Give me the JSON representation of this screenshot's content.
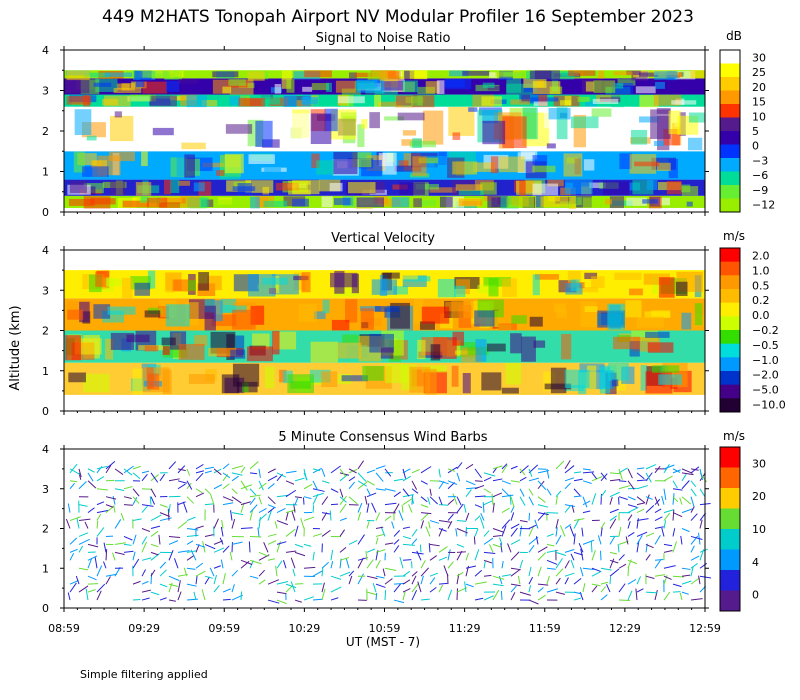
{
  "title": "449 M2HATS Tonopah Airport NV Modular Profiler 16 September 2023",
  "footnote": "Simple filtering applied",
  "xlabel": "UT  (MST - 7)",
  "ylabel": "Altitude (km)",
  "chart_data": [
    {
      "type": "heatmap",
      "title": "Signal to Noise Ratio",
      "units": "dB",
      "xlabel": "UT  (MST - 7)",
      "ylabel": "Altitude (km)",
      "x_ticks": [
        "08:59",
        "09:29",
        "09:59",
        "10:29",
        "10:59",
        "11:29",
        "11:59",
        "12:29",
        "12:59"
      ],
      "xlim": [
        "08:59",
        "12:59"
      ],
      "ylim": [
        0,
        4
      ],
      "y_ticks": [
        0,
        1,
        2,
        3,
        4
      ],
      "colorbar": {
        "labels": [
          "30",
          "25",
          "20",
          "15",
          "10",
          "5",
          "0",
          "−3",
          "−6",
          "−9",
          "−12"
        ],
        "colors": [
          "#ffffff",
          "#ffff00",
          "#ffcc00",
          "#ff9900",
          "#ff3300",
          "#551a8b",
          "#3300aa",
          "#0033ff",
          "#00aaff",
          "#00dd99",
          "#66ee33",
          "#99ee00"
        ]
      },
      "bands": [
        {
          "from": 0.1,
          "to": 0.4,
          "level": "-12",
          "color": "#99ee00"
        },
        {
          "from": 0.4,
          "to": 0.8,
          "level": "-3",
          "color": "#2222cc"
        },
        {
          "from": 0.8,
          "to": 1.5,
          "level": "-6",
          "color": "#00aaff"
        },
        {
          "from": 1.5,
          "to": 2.6,
          "level": "30",
          "color": "#ffffff"
        },
        {
          "from": 2.6,
          "to": 2.9,
          "level": "-9",
          "color": "#00dd99"
        },
        {
          "from": 2.9,
          "to": 3.3,
          "level": "0",
          "color": "#3300aa"
        },
        {
          "from": 3.3,
          "to": 3.5,
          "level": "-12",
          "color": "#99ee00"
        }
      ]
    },
    {
      "type": "heatmap",
      "title": "Vertical Velocity",
      "units": "m/s",
      "x_ticks": [
        "08:59",
        "09:29",
        "09:59",
        "10:29",
        "10:59",
        "11:29",
        "11:59",
        "12:29",
        "12:59"
      ],
      "xlim": [
        "08:59",
        "12:59"
      ],
      "ylim": [
        0,
        4
      ],
      "y_ticks": [
        0,
        1,
        2,
        3,
        4
      ],
      "colorbar": {
        "labels": [
          "2.0",
          "1.0",
          "0.5",
          "0.2",
          "0.0",
          "−0.2",
          "−0.5",
          "−1.0",
          "−2.0",
          "−5.0",
          "−10.0"
        ],
        "colors": [
          "#ff0000",
          "#ff5500",
          "#ff9900",
          "#ffbb00",
          "#ffee00",
          "#ccff00",
          "#33dd00",
          "#00dddd",
          "#0099ff",
          "#0033cc",
          "#440088",
          "#220033"
        ]
      },
      "bands": [
        {
          "from": 0.4,
          "to": 1.2,
          "level": "0.2",
          "color": "#ffcc33"
        },
        {
          "from": 1.2,
          "to": 2.0,
          "level": "-0.5",
          "color": "#33ddaa"
        },
        {
          "from": 2.0,
          "to": 2.8,
          "level": "0.5",
          "color": "#ffaa00"
        },
        {
          "from": 2.8,
          "to": 3.5,
          "level": "0.0",
          "color": "#ffee00"
        }
      ]
    },
    {
      "type": "scatter",
      "title": "5 Minute Consensus Wind Barbs",
      "units": "m/s",
      "x_ticks": [
        "08:59",
        "09:29",
        "09:59",
        "10:29",
        "10:59",
        "11:29",
        "11:59",
        "12:29",
        "12:59"
      ],
      "xlim": [
        "08:59",
        "12:59"
      ],
      "ylim": [
        0,
        4
      ],
      "y_ticks": [
        0,
        1,
        2,
        3,
        4
      ],
      "colorbar": {
        "labels": [
          "30",
          "20",
          "10",
          "4",
          "0"
        ],
        "colors": [
          "#ff0000",
          "#ff6600",
          "#ffcc00",
          "#66dd33",
          "#00cccc",
          "#0099ff",
          "#2222dd",
          "#551a8b"
        ]
      },
      "barb_rows_km": [
        0.2,
        0.4,
        0.6,
        0.8,
        1.0,
        1.2,
        1.4,
        1.6,
        1.8,
        2.0,
        2.2,
        2.4,
        2.6,
        2.8,
        3.0,
        3.2,
        3.4,
        3.5
      ]
    }
  ]
}
